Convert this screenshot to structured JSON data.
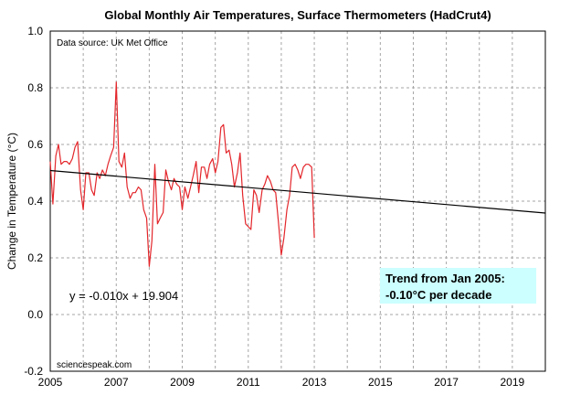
{
  "chart_data": {
    "type": "line",
    "title": "Global Monthly Air Temperatures, Surface Thermometers (HadCrut4)",
    "ylabel": "Change in Temperature  (°C)",
    "xlabel": "",
    "xlim": [
      2005,
      2020
    ],
    "ylim": [
      -0.2,
      1.0
    ],
    "grid": true,
    "x_ticks": [
      "2005",
      "2007",
      "2009",
      "2011",
      "2013",
      "2015",
      "2017",
      "2019"
    ],
    "y_ticks": [
      "1.0",
      "0.8",
      "0.6",
      "0.4",
      "0.2",
      "0.0",
      "-0.2"
    ],
    "series": [
      {
        "color": "#e3262b",
        "x": [
          2005.0,
          2005.08,
          2005.17,
          2005.25,
          2005.33,
          2005.42,
          2005.5,
          2005.58,
          2005.67,
          2005.75,
          2005.83,
          2005.92,
          2006.0,
          2006.08,
          2006.17,
          2006.25,
          2006.33,
          2006.42,
          2006.5,
          2006.58,
          2006.67,
          2006.75,
          2006.83,
          2006.92,
          2007.0,
          2007.08,
          2007.17,
          2007.25,
          2007.33,
          2007.42,
          2007.5,
          2007.58,
          2007.67,
          2007.75,
          2007.83,
          2007.92,
          2008.0,
          2008.08,
          2008.17,
          2008.25,
          2008.33,
          2008.42,
          2008.5,
          2008.58,
          2008.67,
          2008.75,
          2008.83,
          2008.92,
          2009.0,
          2009.08,
          2009.17,
          2009.25,
          2009.33,
          2009.42,
          2009.5,
          2009.58,
          2009.67,
          2009.75,
          2009.83,
          2009.92,
          2010.0,
          2010.08,
          2010.17,
          2010.25,
          2010.33,
          2010.42,
          2010.5,
          2010.58,
          2010.67,
          2010.75,
          2010.83,
          2010.92,
          2011.0,
          2011.08,
          2011.17,
          2011.25,
          2011.33,
          2011.42,
          2011.5,
          2011.58,
          2011.67,
          2011.75,
          2011.83,
          2011.92,
          2012.0,
          2012.08,
          2012.17,
          2012.25,
          2012.33,
          2012.42,
          2012.5,
          2012.58,
          2012.67,
          2012.75,
          2012.83,
          2012.92,
          2013.0
        ],
        "values": [
          0.54,
          0.39,
          0.56,
          0.6,
          0.53,
          0.54,
          0.54,
          0.53,
          0.55,
          0.59,
          0.61,
          0.44,
          0.37,
          0.5,
          0.5,
          0.44,
          0.42,
          0.5,
          0.48,
          0.51,
          0.49,
          0.53,
          0.56,
          0.59,
          0.82,
          0.54,
          0.52,
          0.57,
          0.45,
          0.41,
          0.43,
          0.43,
          0.45,
          0.44,
          0.37,
          0.34,
          0.17,
          0.26,
          0.53,
          0.32,
          0.34,
          0.36,
          0.51,
          0.47,
          0.44,
          0.48,
          0.46,
          0.45,
          0.37,
          0.45,
          0.41,
          0.45,
          0.49,
          0.54,
          0.43,
          0.52,
          0.52,
          0.48,
          0.53,
          0.55,
          0.5,
          0.54,
          0.66,
          0.67,
          0.57,
          0.58,
          0.53,
          0.45,
          0.5,
          0.57,
          0.42,
          0.32,
          0.31,
          0.3,
          0.44,
          0.42,
          0.36,
          0.44,
          0.46,
          0.49,
          0.47,
          0.44,
          0.43,
          0.32,
          0.21,
          0.27,
          0.37,
          0.42,
          0.52,
          0.53,
          0.51,
          0.48,
          0.52,
          0.53,
          0.53,
          0.52,
          0.27
        ]
      },
      {
        "color": "#000000",
        "x": [
          2005,
          2020
        ],
        "values": [
          0.508,
          0.358
        ]
      }
    ],
    "annotations": {
      "source": "Data source: UK Met Office",
      "equation": "y = -0.010x + 19.904",
      "trend_box_line1": "Trend from Jan 2005:",
      "trend_box_line2": "-0.10°C per decade",
      "credit": "sciencespeak.com"
    }
  },
  "colors": {
    "trend_box_bg": "#ccffff",
    "grid": "#a6a6a6",
    "data_line": "#e3262b"
  }
}
